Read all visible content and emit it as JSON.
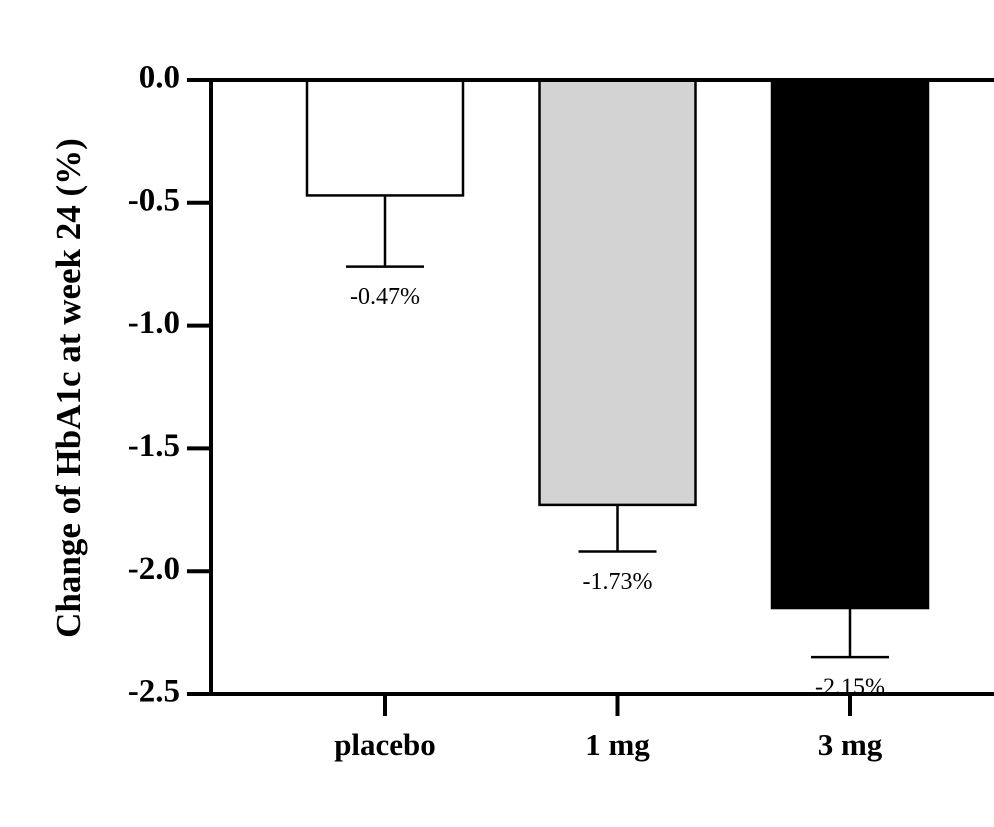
{
  "chart_data": {
    "type": "bar",
    "y_label": "Change of HbA1c at week 24 (%)",
    "categories": [
      "placebo",
      "1 mg",
      "3 mg"
    ],
    "values": [
      -0.47,
      -1.73,
      -2.15
    ],
    "value_labels": [
      "-0.47%",
      "-1.73%",
      "-2.15%"
    ],
    "errors": [
      0.29,
      0.19,
      0.2
    ],
    "colors": [
      "#ffffff",
      "#d3d3d3",
      "#000000"
    ],
    "ylim": [
      -2.5,
      0
    ],
    "yticks": [
      {
        "value": 0,
        "label": "0.0"
      },
      -0.5,
      {
        "value": -1,
        "label": "-1.0"
      },
      -1.5,
      {
        "value": -2,
        "label": "-2.0"
      },
      -2.5
    ]
  }
}
